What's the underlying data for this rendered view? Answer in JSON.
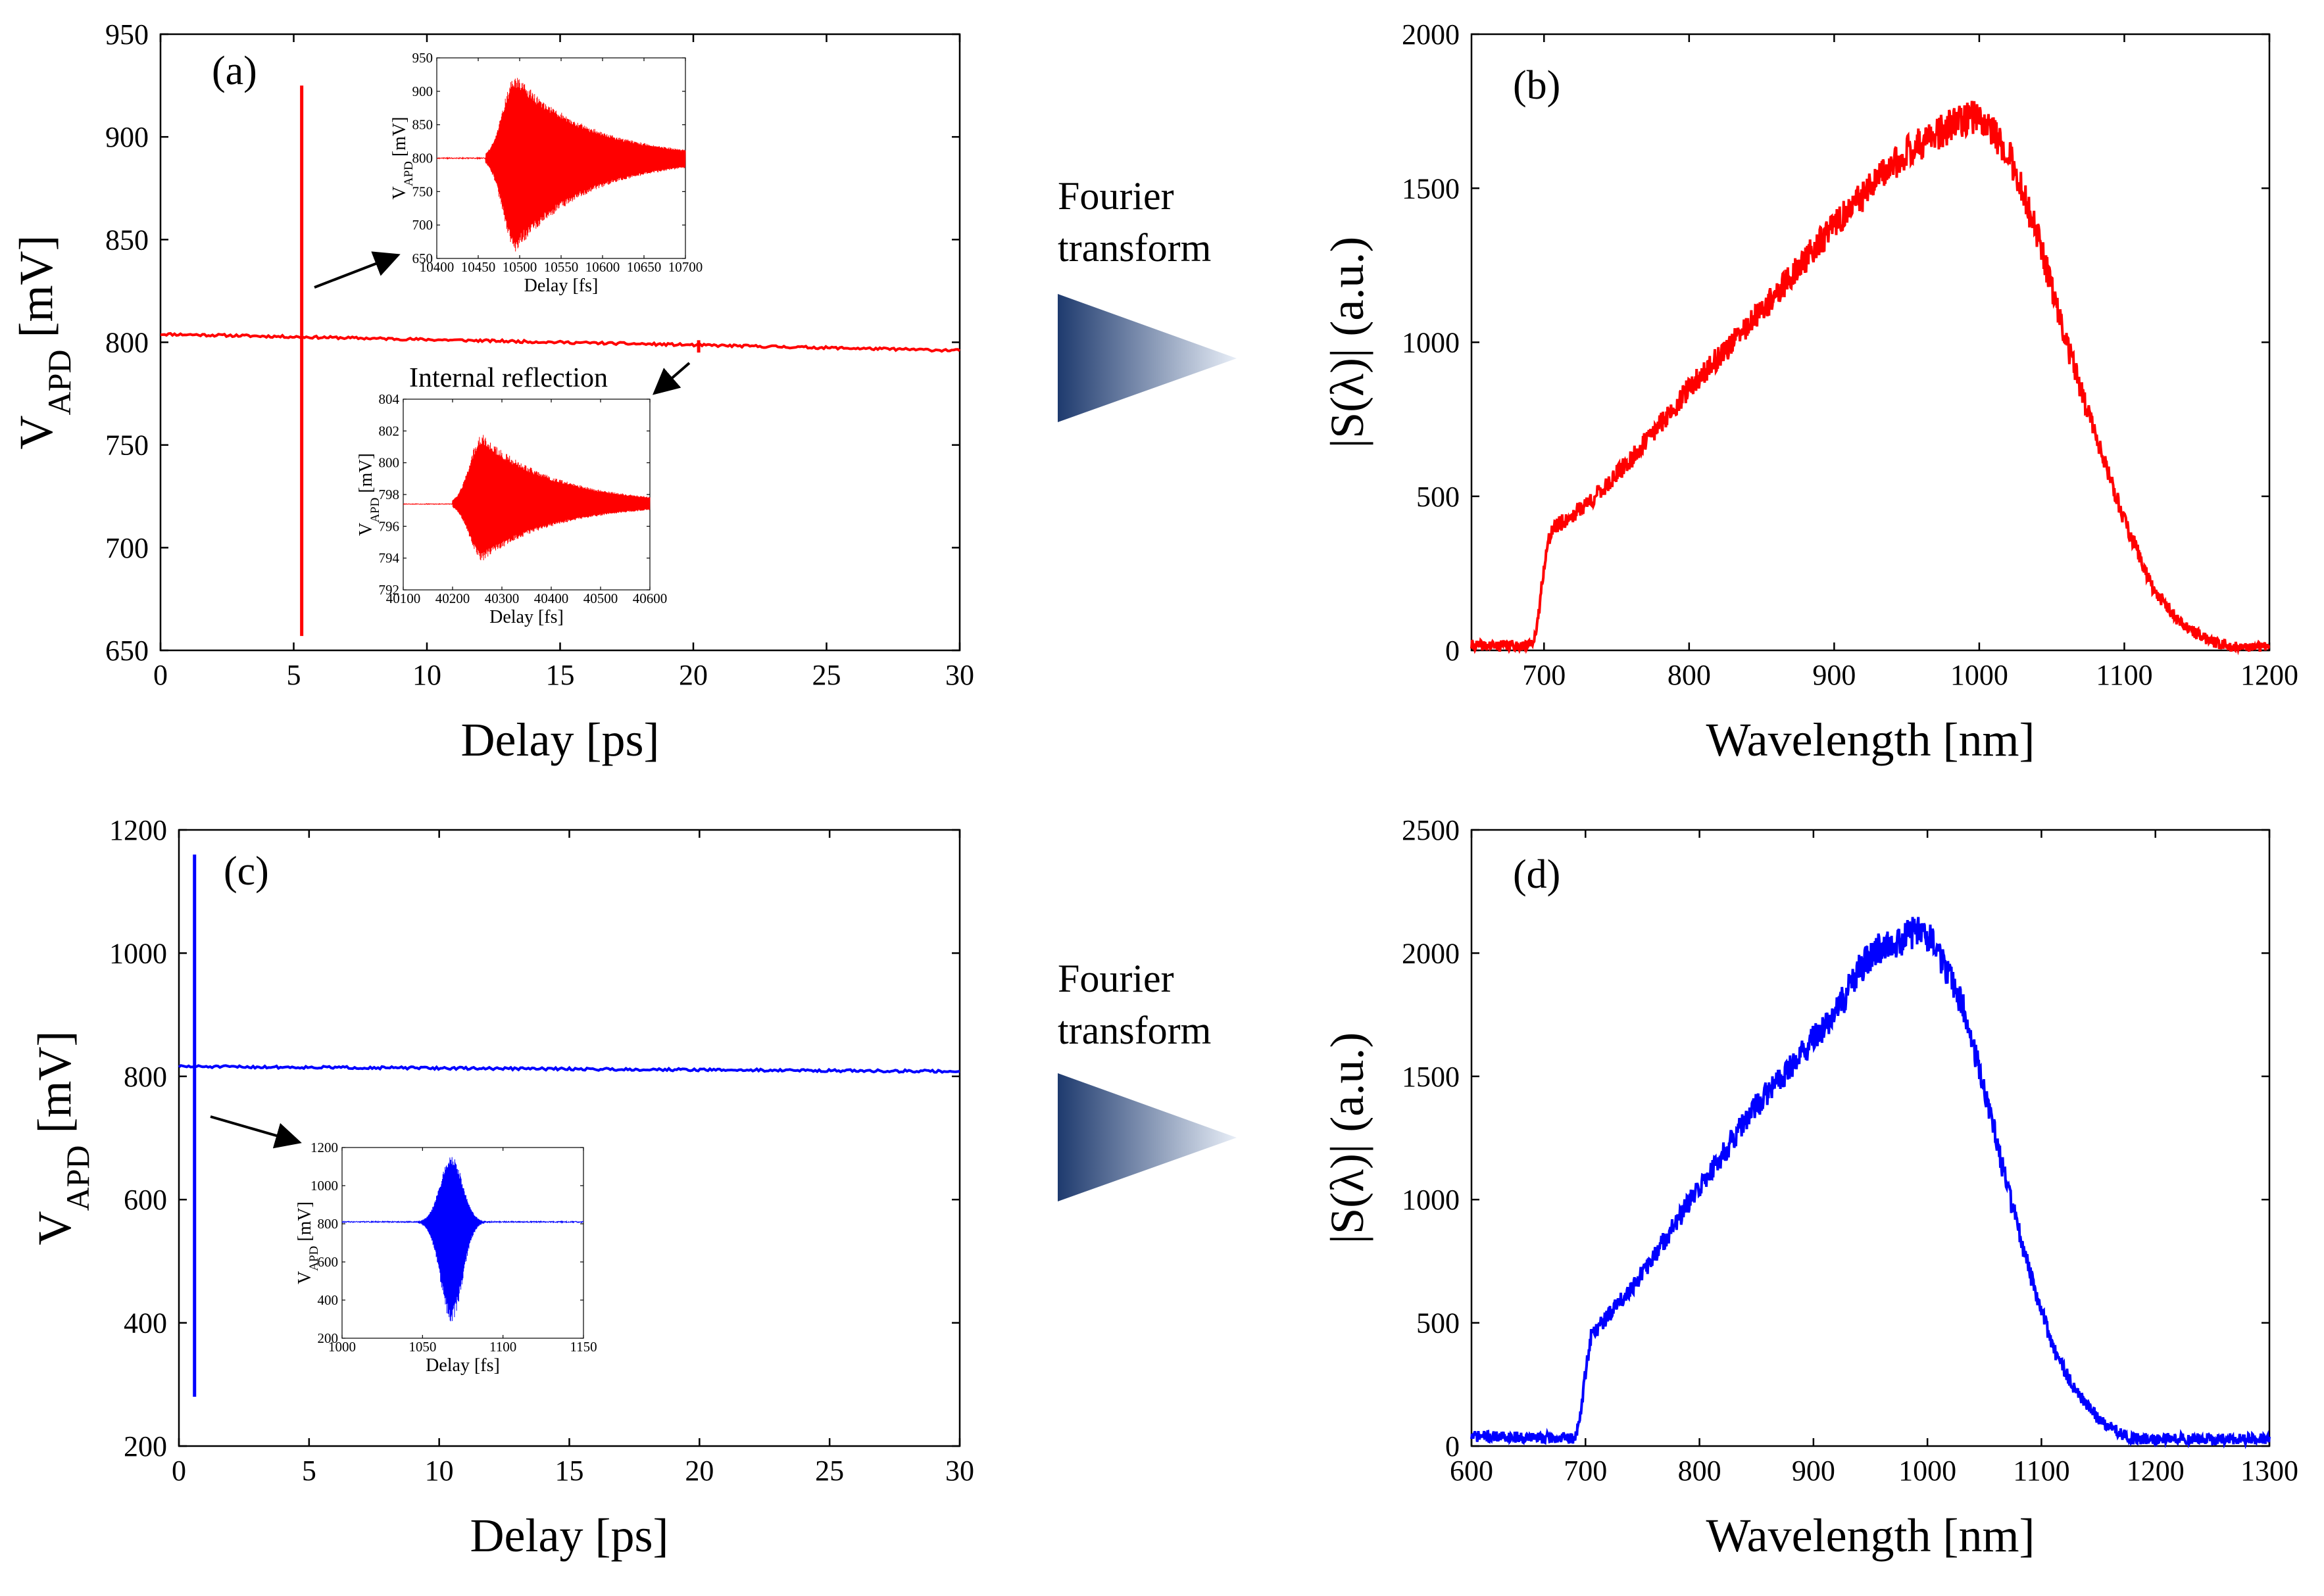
{
  "figure": {
    "fourier_labels": [
      {
        "line1": "Fourier",
        "line2": "transform"
      },
      {
        "line1": "Fourier",
        "line2": "transform"
      }
    ],
    "colors": {
      "red": "#ff0000",
      "blue": "#0000ff",
      "arrow_dark": "#1e3a6e",
      "arrow_light": "#e8eef7"
    }
  },
  "chart_data": [
    {
      "id": "a",
      "type": "line",
      "panel_label": "(a)",
      "xlabel": "Delay [ps]",
      "ylabel": "V",
      "ylabel_sub": "APD",
      "ylabel_unit": "[mV]",
      "xlim": [
        0,
        30
      ],
      "ylim": [
        650,
        950
      ],
      "xticks": [
        0,
        5,
        10,
        15,
        20,
        25,
        30
      ],
      "yticks": [
        650,
        700,
        750,
        800,
        850,
        900,
        950
      ],
      "color": "#ff0000",
      "baseline": {
        "x": [
          0,
          30
        ],
        "y": [
          804,
          796
        ]
      },
      "main_peak": {
        "x": 5.3,
        "max": 925,
        "min": 657
      },
      "secondary_peak": {
        "x": 20.2,
        "max": 801,
        "min": 795
      },
      "annotation": "Internal reflection"
    },
    {
      "id": "a-inset1",
      "type": "line",
      "xlabel": "Delay [fs]",
      "ylabel": "V",
      "ylabel_sub": "APD",
      "ylabel_unit": "[mV]",
      "xlim": [
        10400,
        10700
      ],
      "ylim": [
        650,
        950
      ],
      "xticks": [
        10400,
        10450,
        10500,
        10550,
        10600,
        10650,
        10700
      ],
      "yticks": [
        650,
        700,
        750,
        800,
        850,
        900,
        950
      ],
      "color": "#ff0000",
      "baseline": 800,
      "envelope_peak_x": 10495,
      "envelope_max": 925,
      "envelope_min": 660
    },
    {
      "id": "a-inset2",
      "type": "line",
      "xlabel": "Delay [fs]",
      "ylabel": "V",
      "ylabel_sub": "APD",
      "ylabel_unit": "[mV]",
      "xlim": [
        40100,
        40600
      ],
      "ylim": [
        792,
        804
      ],
      "xticks": [
        40100,
        40200,
        40300,
        40400,
        40500,
        40600
      ],
      "yticks": [
        792,
        794,
        796,
        798,
        800,
        802,
        804
      ],
      "color": "#ff0000",
      "baseline": 797.4,
      "envelope_peak_x": 40260,
      "envelope_max": 801.8,
      "envelope_min": 793.8
    },
    {
      "id": "b",
      "type": "line",
      "panel_label": "(b)",
      "xlabel": "Wavelength [nm]",
      "ylabel": "|S(λ)| (a.u.)",
      "xlim": [
        650,
        1200
      ],
      "ylim": [
        0,
        2000
      ],
      "xticks": [
        700,
        800,
        900,
        1000,
        1100,
        1200
      ],
      "yticks": [
        0,
        500,
        1000,
        1500,
        2000
      ],
      "color": "#ff0000",
      "x": [
        650,
        690,
        695,
        700,
        705,
        720,
        740,
        760,
        800,
        850,
        900,
        950,
        980,
        1000,
        1020,
        1040,
        1060,
        1080,
        1100,
        1120,
        1140,
        1160,
        1175,
        1190,
        1200
      ],
      "y": [
        15,
        15,
        60,
        280,
        390,
        440,
        520,
        620,
        850,
        1100,
        1380,
        1620,
        1700,
        1740,
        1620,
        1350,
        1000,
        700,
        420,
        200,
        80,
        30,
        10,
        10,
        10
      ]
    },
    {
      "id": "c",
      "type": "line",
      "panel_label": "(c)",
      "xlabel": "Delay [ps]",
      "ylabel": "V",
      "ylabel_sub": "APD",
      "ylabel_unit": "[mV]",
      "xlim": [
        0,
        30
      ],
      "ylim": [
        200,
        1200
      ],
      "xticks": [
        0,
        5,
        10,
        15,
        20,
        25,
        30
      ],
      "yticks": [
        200,
        400,
        600,
        800,
        1000,
        1200
      ],
      "color": "#0000ff",
      "baseline": {
        "x": [
          0,
          30
        ],
        "y": [
          816,
          808
        ]
      },
      "main_peak": {
        "x": 0.6,
        "max": 1160,
        "min": 280
      }
    },
    {
      "id": "c-inset",
      "type": "line",
      "xlabel": "Delay [fs]",
      "ylabel": "V",
      "ylabel_sub": "APD",
      "ylabel_unit": "[mV]",
      "xlim": [
        1000,
        1150
      ],
      "ylim": [
        200,
        1200
      ],
      "xticks": [
        1000,
        1050,
        1100,
        1150
      ],
      "yticks": [
        200,
        400,
        600,
        800,
        1000,
        1200
      ],
      "color": "#0000ff",
      "baseline": 810,
      "envelope_peak_x": 1068,
      "envelope_max": 1160,
      "envelope_min": 285
    },
    {
      "id": "d",
      "type": "line",
      "panel_label": "(d)",
      "xlabel": "Wavelength [nm]",
      "ylabel": "|S(λ)| (a.u.)",
      "xlim": [
        600,
        1300
      ],
      "ylim": [
        0,
        2500
      ],
      "xticks": [
        600,
        700,
        800,
        900,
        1000,
        1100,
        1200,
        1300
      ],
      "yticks": [
        0,
        500,
        1000,
        1500,
        2000,
        2500
      ],
      "color": "#0000ff",
      "x": [
        600,
        650,
        690,
        695,
        700,
        705,
        720,
        750,
        800,
        850,
        900,
        920,
        940,
        960,
        980,
        995,
        1010,
        1030,
        1050,
        1070,
        1090,
        1110,
        1130,
        1150,
        1170,
        1180,
        1200,
        1250,
        1300
      ],
      "y": [
        40,
        35,
        30,
        100,
        300,
        450,
        530,
        700,
        1050,
        1380,
        1650,
        1760,
        1930,
        2030,
        2060,
        2110,
        2000,
        1800,
        1450,
        1050,
        700,
        400,
        220,
        110,
        50,
        30,
        30,
        30,
        30
      ]
    }
  ]
}
